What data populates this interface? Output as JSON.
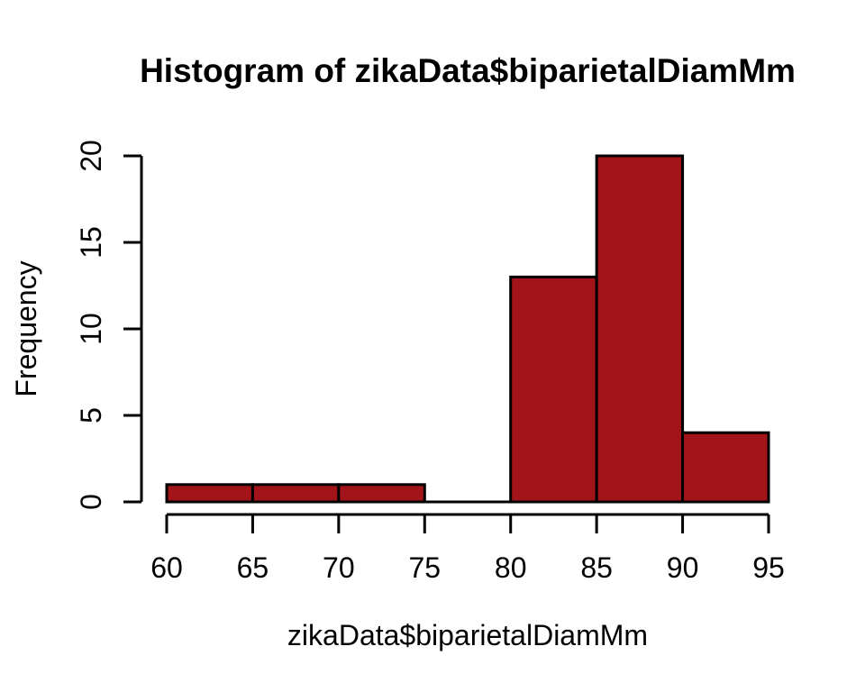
{
  "chart_data": {
    "type": "bar",
    "chart_style": "histogram",
    "title": "Histogram of zikaData$biparietalDiamMm",
    "xlabel": "zikaData$biparietalDiamMm",
    "ylabel": "Frequency",
    "bin_edges": [
      60,
      65,
      70,
      75,
      80,
      85,
      90,
      95
    ],
    "counts": [
      1,
      1,
      1,
      0,
      13,
      20,
      4
    ],
    "x_ticks": [
      60,
      65,
      70,
      75,
      80,
      85,
      90,
      95
    ],
    "y_ticks": [
      0,
      5,
      10,
      15,
      20
    ],
    "xlim": [
      60,
      95
    ],
    "ylim": [
      0,
      20
    ],
    "grid": false,
    "legend": "none",
    "colors": {
      "bar_fill": "#A3141A",
      "bar_stroke": "#000000",
      "axis": "#000000",
      "text": "#000000",
      "background": "#FFFFFF"
    }
  }
}
